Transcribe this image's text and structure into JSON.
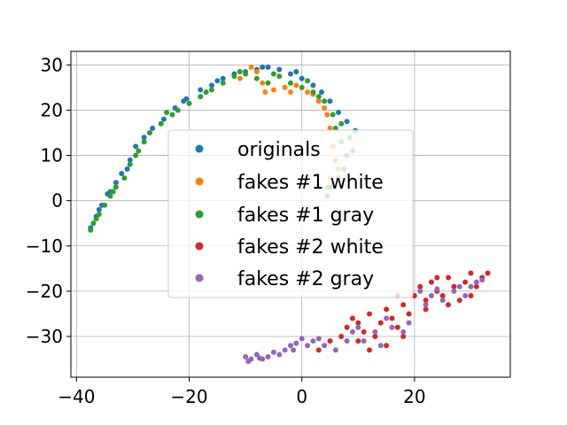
{
  "chart_data": {
    "type": "scatter",
    "title": "",
    "xlabel": "",
    "ylabel": "",
    "xlim": [
      -41,
      37
    ],
    "ylim": [
      -39,
      33
    ],
    "xticks": [
      -40,
      -20,
      0,
      20
    ],
    "yticks": [
      30,
      20,
      10,
      0,
      -10,
      -20,
      -30
    ],
    "xtick_labels": [
      "−40",
      "−20",
      "0",
      "20"
    ],
    "ytick_labels": [
      "30",
      "20",
      "10",
      "0",
      "−10",
      "−20",
      "−30"
    ],
    "grid": true,
    "legend_position": "center",
    "series": [
      {
        "name": "originals",
        "color": "#1f77b4",
        "points": [
          [
            -37.5,
            -6
          ],
          [
            -36.5,
            -3.5
          ],
          [
            -35.5,
            -1
          ],
          [
            -34.5,
            1.5
          ],
          [
            -33,
            4
          ],
          [
            -32,
            6
          ],
          [
            -30.5,
            9
          ],
          [
            -29.5,
            12
          ],
          [
            -28,
            14
          ],
          [
            -26.5,
            16
          ],
          [
            -24.5,
            18
          ],
          [
            -22.5,
            20.5
          ],
          [
            -20.5,
            22.5
          ],
          [
            -18,
            24.5
          ],
          [
            -16,
            25.5
          ],
          [
            -14,
            27
          ],
          [
            -12,
            28
          ],
          [
            -10,
            28.5
          ],
          [
            -8,
            29
          ],
          [
            -6,
            29.5
          ],
          [
            -4,
            29
          ],
          [
            -2,
            28
          ],
          [
            0,
            27
          ],
          [
            2,
            25.5
          ],
          [
            3.5,
            24
          ],
          [
            5,
            22
          ],
          [
            6.5,
            19.5
          ],
          [
            8,
            17.5
          ],
          [
            9.5,
            15.5
          ],
          [
            -36,
            -2
          ],
          [
            -34,
            2
          ],
          [
            -31,
            7
          ],
          [
            -27,
            15
          ],
          [
            -21,
            22
          ],
          [
            -15,
            26.5
          ],
          [
            -7,
            29.5
          ],
          [
            -1,
            28.5
          ]
        ]
      },
      {
        "name": "fakes #1 white",
        "color": "#ff7f0e",
        "points": [
          [
            -9,
            29.5
          ],
          [
            -8,
            28.5
          ],
          [
            -6.5,
            24
          ],
          [
            -5,
            24.5
          ],
          [
            -3,
            25
          ],
          [
            -1,
            25.5
          ],
          [
            1,
            24
          ],
          [
            3,
            22
          ],
          [
            4.5,
            19
          ],
          [
            5,
            16
          ],
          [
            5.5,
            12
          ],
          [
            6,
            9
          ],
          [
            6.5,
            7
          ],
          [
            5,
            5
          ],
          [
            4.5,
            3
          ],
          [
            -11,
            27
          ],
          [
            -7,
            26
          ],
          [
            -2,
            24
          ],
          [
            2,
            23.5
          ],
          [
            4,
            20.5
          ]
        ]
      },
      {
        "name": "fakes #1 gray",
        "color": "#2ca02c",
        "points": [
          [
            -37.5,
            -6.5
          ],
          [
            -37,
            -5
          ],
          [
            -36,
            -3
          ],
          [
            -35,
            -1
          ],
          [
            -34,
            1
          ],
          [
            -33,
            3
          ],
          [
            -31.5,
            5
          ],
          [
            -30.5,
            8
          ],
          [
            -29.5,
            10
          ],
          [
            -28,
            13
          ],
          [
            -27,
            15
          ],
          [
            -25,
            17
          ],
          [
            -24,
            19.5
          ],
          [
            -22,
            20
          ],
          [
            -20,
            21.5
          ],
          [
            -18,
            23
          ],
          [
            -16,
            24.5
          ],
          [
            -14,
            26
          ],
          [
            -12,
            27.5
          ],
          [
            -10,
            28
          ],
          [
            -8,
            27
          ],
          [
            -6,
            26
          ],
          [
            -4,
            27.5
          ],
          [
            -2,
            26
          ],
          [
            0,
            25
          ],
          [
            2,
            24
          ],
          [
            4,
            22
          ],
          [
            5.5,
            19
          ],
          [
            6,
            16
          ],
          [
            7,
            13
          ],
          [
            8,
            10
          ],
          [
            7.5,
            7
          ],
          [
            6.5,
            5
          ],
          [
            5,
            3
          ],
          [
            4.5,
            1
          ],
          [
            -36.5,
            -4
          ],
          [
            -33.5,
            2
          ],
          [
            -29,
            11
          ],
          [
            -23,
            19
          ],
          [
            -17,
            24
          ],
          [
            -11,
            28.5
          ],
          [
            -5,
            28
          ],
          [
            1,
            26.5
          ],
          [
            3,
            23
          ],
          [
            7,
            17
          ],
          [
            8.5,
            14
          ],
          [
            9,
            11
          ]
        ]
      },
      {
        "name": "fakes #2 white",
        "color": "#d62728",
        "points": [
          [
            3,
            -33
          ],
          [
            5,
            -31
          ],
          [
            7,
            -30
          ],
          [
            8,
            -28
          ],
          [
            9,
            -26
          ],
          [
            10,
            -27
          ],
          [
            11,
            -29
          ],
          [
            12,
            -25
          ],
          [
            13,
            -30
          ],
          [
            14,
            -27
          ],
          [
            15,
            -24
          ],
          [
            16,
            -26
          ],
          [
            17,
            -28
          ],
          [
            18,
            -23
          ],
          [
            19,
            -25
          ],
          [
            20,
            -21
          ],
          [
            21,
            -19
          ],
          [
            22,
            -22
          ],
          [
            23,
            -18
          ],
          [
            24,
            -20
          ],
          [
            25,
            -21
          ],
          [
            26,
            -17
          ],
          [
            27,
            -19
          ],
          [
            28,
            -22
          ],
          [
            29,
            -18
          ],
          [
            30,
            -16
          ],
          [
            31,
            -19
          ],
          [
            32,
            -17
          ],
          [
            15,
            -32
          ],
          [
            18,
            -30
          ],
          [
            12,
            -33
          ],
          [
            22,
            -24
          ],
          [
            26,
            -23
          ],
          [
            30,
            -21
          ],
          [
            17,
            -21
          ],
          [
            24,
            -17
          ],
          [
            33,
            -16
          ],
          [
            10,
            -31
          ]
        ]
      },
      {
        "name": "fakes #2 gray",
        "color": "#9467bd",
        "points": [
          [
            -10,
            -34.5
          ],
          [
            -9,
            -35
          ],
          [
            -8,
            -34
          ],
          [
            -7,
            -35
          ],
          [
            -6,
            -34.5
          ],
          [
            -5,
            -33.5
          ],
          [
            -4,
            -34
          ],
          [
            -3,
            -33
          ],
          [
            -2,
            -32
          ],
          [
            -1,
            -31.5
          ],
          [
            0,
            -30.5
          ],
          [
            1,
            -32
          ],
          [
            2,
            -31
          ],
          [
            4,
            -32
          ],
          [
            6,
            -33
          ],
          [
            8,
            -31
          ],
          [
            9,
            -29
          ],
          [
            11,
            -31
          ],
          [
            13,
            -29
          ],
          [
            14,
            -32
          ],
          [
            16,
            -28
          ],
          [
            18,
            -29
          ],
          [
            19,
            -27
          ],
          [
            21,
            -20
          ],
          [
            22,
            -23
          ],
          [
            23,
            -21
          ],
          [
            25,
            -22
          ],
          [
            27,
            -20
          ],
          [
            28,
            -19
          ],
          [
            29,
            -21
          ],
          [
            31,
            -18
          ],
          [
            32,
            -17.5
          ],
          [
            -9.5,
            -35.5
          ],
          [
            -7.5,
            -34.8
          ],
          [
            -1.5,
            -33
          ],
          [
            3,
            -30.5
          ],
          [
            10,
            -28
          ],
          [
            15,
            -26
          ],
          [
            24,
            -19.5
          ],
          [
            30,
            -19
          ]
        ]
      }
    ]
  }
}
